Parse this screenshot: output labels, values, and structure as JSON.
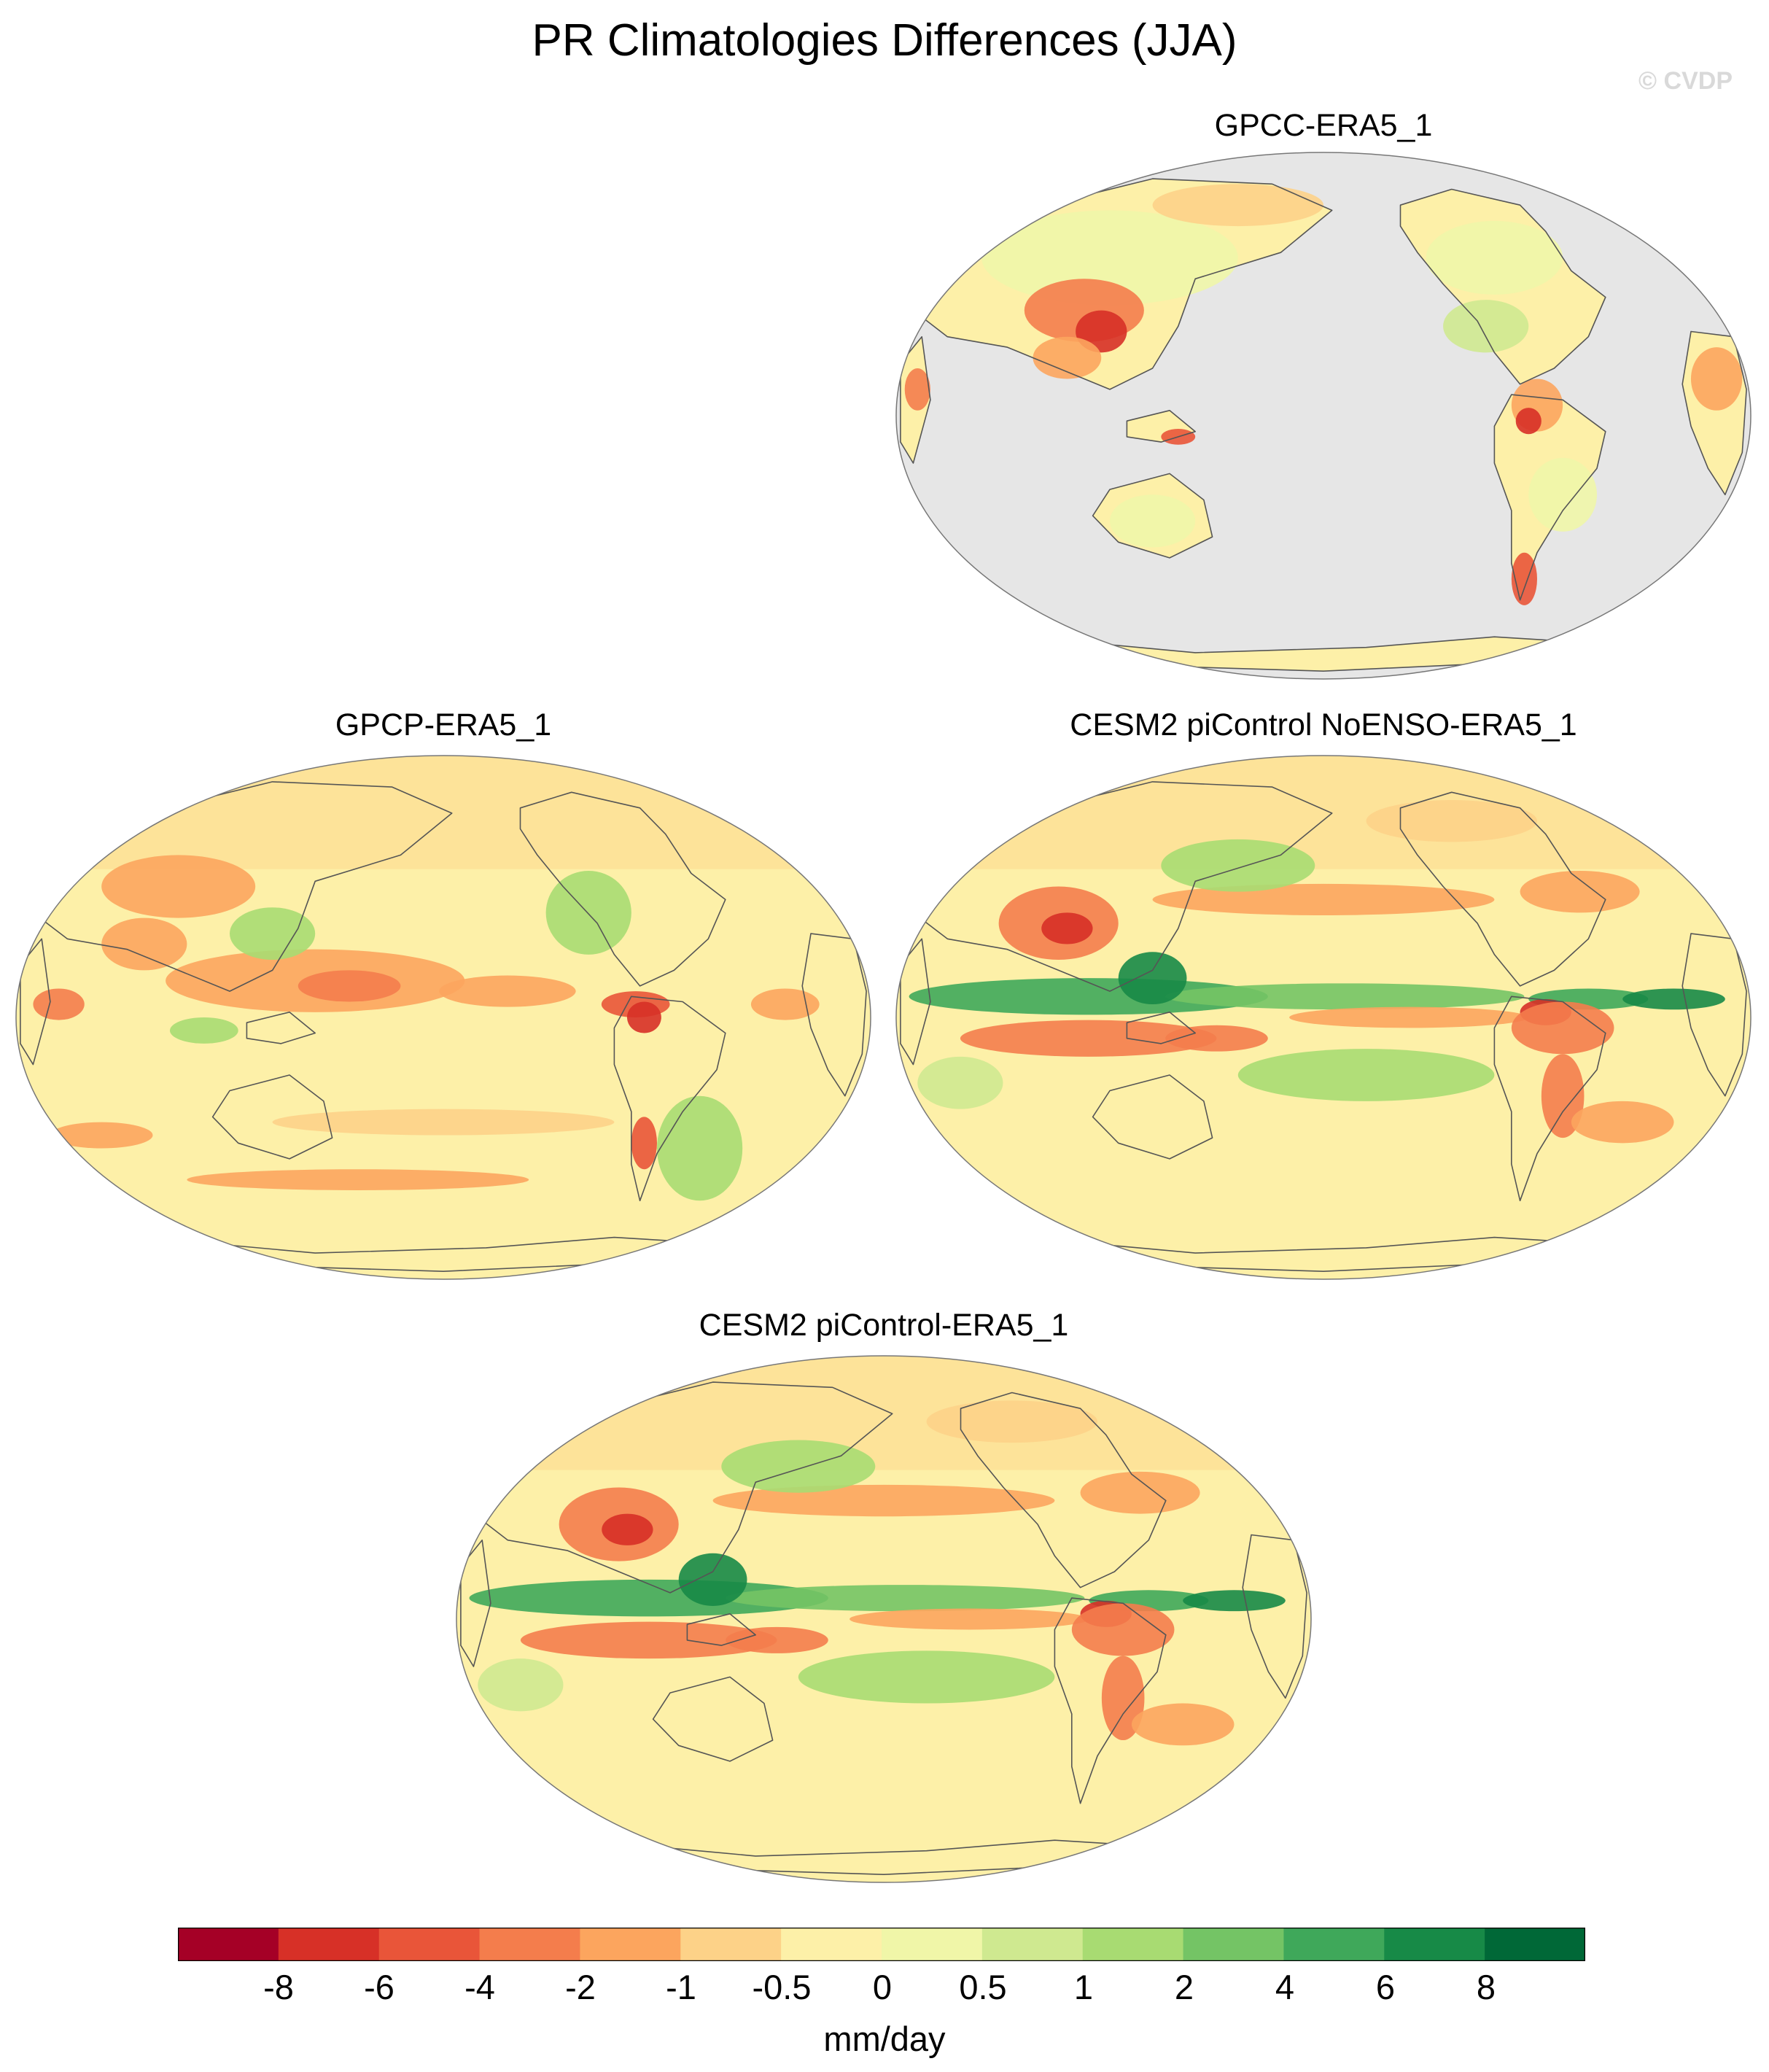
{
  "title": "PR Climatologies Differences (JJA)",
  "watermark": "© CVDP",
  "panels": [
    {
      "title": "GPCC-ERA5_1",
      "variant": "land_only"
    },
    {
      "title": "GPCP-ERA5_1",
      "variant": "obs"
    },
    {
      "title": "CESM2 piControl NoENSO-ERA5_1",
      "variant": "model"
    },
    {
      "title": "CESM2 piControl-ERA5_1",
      "variant": "model"
    }
  ],
  "colorbar": {
    "units": "mm/day",
    "tick_labels": [
      "-8",
      "-6",
      "-4",
      "-2",
      "-1",
      "-0.5",
      "0",
      "0.5",
      "1",
      "2",
      "4",
      "6",
      "8"
    ],
    "colors": [
      "#a50026",
      "#d73027",
      "#e95539",
      "#f47d4c",
      "#fca55e",
      "#fdd288",
      "#fdf0a8",
      "#f0f6a8",
      "#cfe990",
      "#a8db72",
      "#74c465",
      "#3fa85a",
      "#178a47",
      "#006837"
    ]
  },
  "missing_color": "#e6e6e6"
}
